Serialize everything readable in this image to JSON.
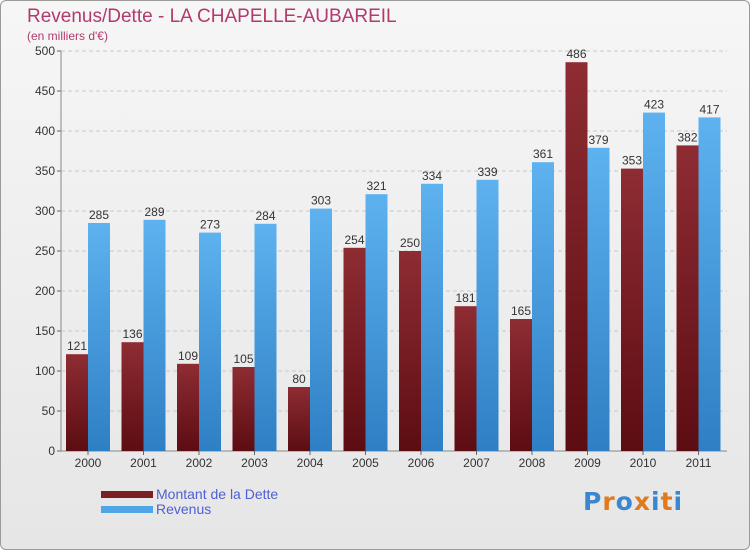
{
  "title": "Revenus/Dette - LA CHAPELLE-AUBAREIL",
  "subtitle": "(en milliers d'€)",
  "legend": {
    "items": [
      {
        "label": "Montant de la Dette",
        "color": "#7a1f24"
      },
      {
        "label": "Revenus",
        "color": "#4ea6e6"
      }
    ]
  },
  "logo": {
    "text": "Proxiti",
    "colors": [
      "#3a86d0",
      "#e07a1f",
      "#3a86d0",
      "#e07a1f",
      "#3a86d0",
      "#e07a1f",
      "#3a86d0"
    ]
  },
  "chart_data": {
    "type": "bar",
    "title": "Revenus/Dette - LA CHAPELLE-AUBAREIL",
    "ylabel": "(en milliers d'€)",
    "categories": [
      "2000",
      "2001",
      "2002",
      "2003",
      "2004",
      "2005",
      "2006",
      "2007",
      "2008",
      "2009",
      "2010",
      "2011"
    ],
    "series": [
      {
        "name": "Montant de la Dette",
        "color": "#7a1f24",
        "values": [
          121,
          136,
          109,
          105,
          80,
          254,
          250,
          181,
          165,
          486,
          353,
          382
        ]
      },
      {
        "name": "Revenus",
        "color": "#4ea6e6",
        "values": [
          285,
          289,
          273,
          284,
          303,
          321,
          334,
          339,
          361,
          379,
          423,
          417
        ]
      }
    ],
    "ylim": [
      0,
      500
    ],
    "yticks": [
      0,
      50,
      100,
      150,
      200,
      250,
      300,
      350,
      400,
      450,
      500
    ],
    "grid": true,
    "legend_position": "bottom-left"
  }
}
